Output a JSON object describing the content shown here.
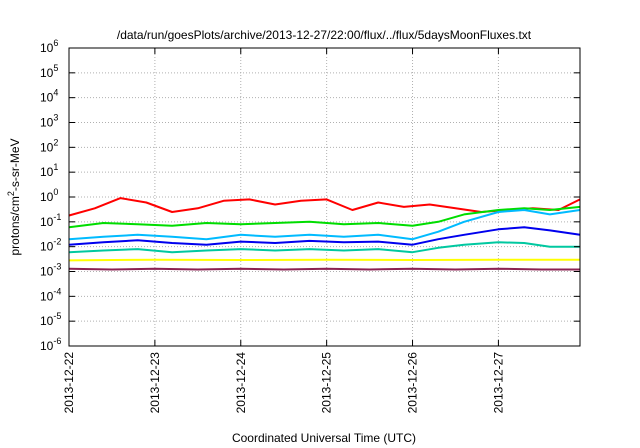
{
  "chart_data": {
    "type": "line",
    "title": "/data/run/goesPlots/archive/2013-12-27/22:00/flux/../flux/5daysMoonFluxes.txt",
    "xlabel": "Coordinated Universal Time (UTC)",
    "ylabel": "protons/cm2-s-sr-MeV",
    "ylabel_parts": {
      "pre": "protons/cm",
      "sup": "2",
      "post": "-s-sr-MeV"
    },
    "yscale": "log",
    "ylim": [
      1e-06,
      1000000.0
    ],
    "xlim": [
      0,
      5.95
    ],
    "grid": true,
    "x_tick_labels": [
      "2013-12-22",
      "2013-12-23",
      "2013-12-24",
      "2013-12-25",
      "2013-12-26",
      "2013-12-27"
    ],
    "x_tick_values": [
      0,
      1,
      2,
      3,
      4,
      5
    ],
    "y_ticks": [
      {
        "value": 1000000.0,
        "base": "10",
        "exp": "6"
      },
      {
        "value": 100000.0,
        "base": "10",
        "exp": "5"
      },
      {
        "value": 10000.0,
        "base": "10",
        "exp": "4"
      },
      {
        "value": 1000.0,
        "base": "10",
        "exp": "3"
      },
      {
        "value": 100.0,
        "base": "10",
        "exp": "2"
      },
      {
        "value": 10.0,
        "base": "10",
        "exp": "1"
      },
      {
        "value": 1.0,
        "base": "10",
        "exp": "0"
      },
      {
        "value": 0.1,
        "base": "10",
        "exp": "-1"
      },
      {
        "value": 0.01,
        "base": "10",
        "exp": "-2"
      },
      {
        "value": 0.001,
        "base": "10",
        "exp": "-3"
      },
      {
        "value": 0.0001,
        "base": "10",
        "exp": "-4"
      },
      {
        "value": 1e-05,
        "base": "10",
        "exp": "-5"
      },
      {
        "value": 1e-06,
        "base": "10",
        "exp": "-6"
      }
    ],
    "series": [
      {
        "color": "#ff0000",
        "x": [
          0,
          0.3,
          0.6,
          0.9,
          1.2,
          1.5,
          1.8,
          2.1,
          2.4,
          2.7,
          3.0,
          3.3,
          3.6,
          3.9,
          4.2,
          4.5,
          4.8,
          5.1,
          5.4,
          5.7,
          5.95
        ],
        "y": [
          0.18,
          0.35,
          0.9,
          0.6,
          0.25,
          0.35,
          0.7,
          0.8,
          0.5,
          0.7,
          0.8,
          0.3,
          0.6,
          0.4,
          0.5,
          0.35,
          0.25,
          0.3,
          0.35,
          0.3,
          0.8
        ]
      },
      {
        "color": "#00dd00",
        "x": [
          0,
          0.4,
          0.8,
          1.2,
          1.6,
          2.0,
          2.4,
          2.8,
          3.2,
          3.6,
          4.0,
          4.3,
          4.6,
          5.0,
          5.3,
          5.6,
          5.95
        ],
        "y": [
          0.06,
          0.09,
          0.08,
          0.07,
          0.09,
          0.08,
          0.09,
          0.1,
          0.08,
          0.09,
          0.07,
          0.1,
          0.2,
          0.3,
          0.35,
          0.3,
          0.4
        ]
      },
      {
        "color": "#00bbff",
        "x": [
          0,
          0.4,
          0.8,
          1.2,
          1.6,
          2.0,
          2.4,
          2.8,
          3.2,
          3.6,
          4.0,
          4.3,
          4.6,
          5.0,
          5.3,
          5.6,
          5.95
        ],
        "y": [
          0.02,
          0.025,
          0.03,
          0.025,
          0.02,
          0.03,
          0.025,
          0.03,
          0.025,
          0.03,
          0.02,
          0.04,
          0.1,
          0.25,
          0.3,
          0.2,
          0.3
        ]
      },
      {
        "color": "#0000ee",
        "x": [
          0,
          0.4,
          0.8,
          1.2,
          1.6,
          2.0,
          2.4,
          2.8,
          3.2,
          3.6,
          4.0,
          4.3,
          4.6,
          5.0,
          5.3,
          5.6,
          5.95
        ],
        "y": [
          0.012,
          0.015,
          0.018,
          0.014,
          0.012,
          0.016,
          0.014,
          0.017,
          0.015,
          0.016,
          0.012,
          0.02,
          0.03,
          0.05,
          0.06,
          0.045,
          0.03
        ]
      },
      {
        "color": "#00c8a0",
        "x": [
          0,
          0.4,
          0.8,
          1.2,
          1.6,
          2.0,
          2.4,
          2.8,
          3.2,
          3.6,
          4.0,
          4.3,
          4.6,
          5.0,
          5.3,
          5.6,
          5.95
        ],
        "y": [
          0.006,
          0.007,
          0.008,
          0.006,
          0.007,
          0.008,
          0.007,
          0.008,
          0.007,
          0.008,
          0.006,
          0.009,
          0.012,
          0.015,
          0.014,
          0.01,
          0.01
        ]
      },
      {
        "color": "#ffff00",
        "x": [
          0,
          1,
          2,
          3,
          4,
          5,
          5.95
        ],
        "y": [
          0.0028,
          0.003,
          0.0029,
          0.003,
          0.0029,
          0.003,
          0.003
        ]
      },
      {
        "color": "#8b2252",
        "x": [
          0,
          0.5,
          1,
          1.5,
          2,
          2.5,
          3,
          3.5,
          4,
          4.5,
          5,
          5.5,
          5.95
        ],
        "y": [
          0.0013,
          0.0012,
          0.0013,
          0.0012,
          0.0013,
          0.0012,
          0.0013,
          0.0012,
          0.0013,
          0.0012,
          0.0013,
          0.0012,
          0.0012
        ]
      }
    ]
  }
}
